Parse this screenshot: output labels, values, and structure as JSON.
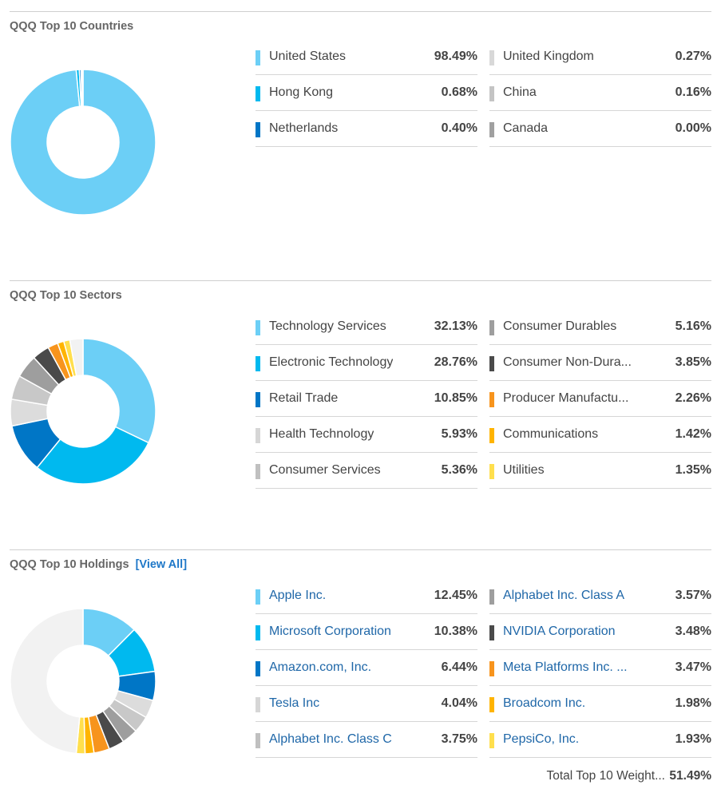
{
  "countries": {
    "title": "QQQ Top 10 Countries",
    "chart_data": {
      "type": "pie",
      "categories": [
        "United States",
        "Hong Kong",
        "Netherlands",
        "United Kingdom",
        "China",
        "Canada"
      ],
      "values": [
        98.49,
        0.68,
        0.4,
        0.27,
        0.16,
        0.0
      ],
      "colors": [
        "#6ccff6",
        "#00b9ef",
        "#0076c6",
        "#d8d8d8",
        "#c4c4c4",
        "#a0a0a0"
      ],
      "legend_colors": [
        "#6ccff6",
        "#00b9ef",
        "#0076c6",
        "#d8d8d8",
        "#c4c4c4",
        "#a0a0a0"
      ],
      "labels": [
        "98.49%",
        "0.68%",
        "0.40%",
        "0.27%",
        "0.16%",
        "0.00%"
      ],
      "remainder": 0,
      "remainder_color": "#f2f2f2"
    }
  },
  "sectors": {
    "title": "QQQ Top 10 Sectors",
    "chart_data": {
      "type": "pie",
      "categories": [
        "Technology Services",
        "Electronic Technology",
        "Retail Trade",
        "Health Technology",
        "Consumer Services",
        "Consumer Durables",
        "Consumer Non-Dura...",
        "Producer Manufactu...",
        "Communications",
        "Utilities"
      ],
      "values": [
        32.13,
        28.76,
        10.85,
        5.93,
        5.36,
        5.16,
        3.85,
        2.26,
        1.42,
        1.35
      ],
      "colors": [
        "#6ccff6",
        "#00b9ef",
        "#0076c6",
        "#dcdcdc",
        "#c8c8c8",
        "#9e9e9e",
        "#4a4a4a",
        "#f7941d",
        "#ffb400",
        "#ffdf4d"
      ],
      "legend_colors": [
        "#6ccff6",
        "#00b9ef",
        "#0076c6",
        "#d6d6d6",
        "#c0c0c0",
        "#9e9e9e",
        "#4a4a4a",
        "#f7941d",
        "#ffb400",
        "#ffdf4d"
      ],
      "labels": [
        "32.13%",
        "28.76%",
        "10.85%",
        "5.93%",
        "5.36%",
        "5.16%",
        "3.85%",
        "2.26%",
        "1.42%",
        "1.35%"
      ],
      "remainder": 2.93,
      "remainder_color": "#f2f2f2"
    }
  },
  "holdings": {
    "title": "QQQ Top 10 Holdings",
    "view_all_label": "[View All]",
    "total_label": "Total Top 10 Weight...",
    "total_value": "51.49%",
    "chart_data": {
      "type": "pie",
      "categories": [
        "Apple Inc.",
        "Microsoft Corporation",
        "Amazon.com, Inc.",
        "Tesla Inc",
        "Alphabet Inc. Class C",
        "Alphabet Inc. Class A",
        "NVIDIA Corporation",
        "Meta Platforms Inc. ...",
        "Broadcom Inc.",
        "PepsiCo, Inc."
      ],
      "values": [
        12.45,
        10.38,
        6.44,
        4.04,
        3.75,
        3.57,
        3.48,
        3.47,
        1.98,
        1.93
      ],
      "colors": [
        "#6ccff6",
        "#00b9ef",
        "#0076c6",
        "#dcdcdc",
        "#c8c8c8",
        "#9e9e9e",
        "#4a4a4a",
        "#f7941d",
        "#ffb400",
        "#ffdf4d"
      ],
      "legend_colors": [
        "#6ccff6",
        "#00b9ef",
        "#0076c6",
        "#d6d6d6",
        "#c0c0c0",
        "#9e9e9e",
        "#4a4a4a",
        "#f7941d",
        "#ffb400",
        "#ffdf4d"
      ],
      "labels": [
        "12.45%",
        "10.38%",
        "6.44%",
        "4.04%",
        "3.75%",
        "3.57%",
        "3.48%",
        "3.47%",
        "1.98%",
        "1.93%"
      ],
      "remainder": 48.51,
      "remainder_color": "#f2f2f2"
    }
  }
}
